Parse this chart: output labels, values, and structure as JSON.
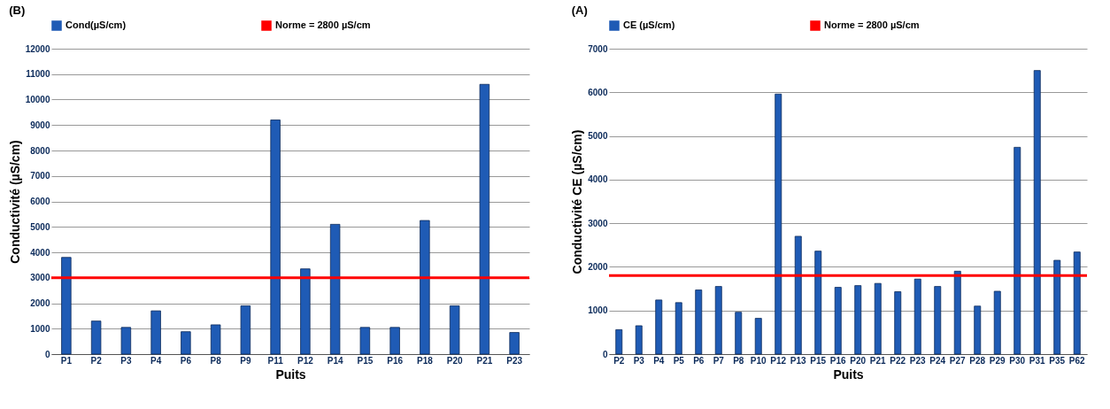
{
  "chart_data": [
    {
      "type": "bar",
      "annotations": [
        "(B)",
        "Norme = 2800 µS/cm"
      ],
      "xlabel": "Puits",
      "ylabel": "Conductivité (µS/cm)",
      "categories": [
        "P1",
        "P2",
        "P3",
        "P4",
        "P6",
        "P8",
        "P9",
        "P11",
        "P12",
        "P14",
        "P15",
        "P16",
        "P18",
        "P20",
        "P21",
        "P23"
      ],
      "series": [
        {
          "name": "Cond(µS/cm)",
          "color": "#1f5bb5",
          "values": [
            3800,
            1300,
            1050,
            1700,
            880,
            1150,
            1900,
            9200,
            3350,
            5100,
            1050,
            1050,
            5250,
            1900,
            10600,
            850
          ]
        }
      ],
      "ylim": [
        0,
        12000
      ],
      "yticks": [
        0,
        1000,
        2000,
        3000,
        4000,
        5000,
        6000,
        7000,
        8000,
        9000,
        10000,
        11000,
        12000
      ],
      "grid": "y",
      "legend": "top",
      "ref_lines": [
        {
          "axis": "y",
          "value": 3000,
          "color": "#ff0000"
        }
      ]
    },
    {
      "type": "bar",
      "annotations": [
        "(A)",
        "Norme = 2800 µS/cm"
      ],
      "xlabel": "Puits",
      "ylabel": "Conductivité CE (µS/cm)",
      "categories": [
        "P2",
        "P3",
        "P4",
        "P5",
        "P6",
        "P7",
        "P8",
        "P10",
        "P12",
        "P13",
        "P15",
        "P16",
        "P20",
        "P21",
        "P22",
        "P23",
        "P24",
        "P27",
        "P28",
        "P29",
        "P30",
        "P31",
        "P35",
        "P62"
      ],
      "series": [
        {
          "name": "CE (µS/cm)",
          "color": "#1f5bb5",
          "values": [
            560,
            650,
            1240,
            1180,
            1470,
            1550,
            960,
            820,
            5960,
            2700,
            2360,
            1530,
            1570,
            1620,
            1430,
            1720,
            1550,
            1900,
            1100,
            1440,
            4740,
            6500,
            2150,
            2340
          ]
        }
      ],
      "ylim": [
        0,
        7000
      ],
      "yticks": [
        0,
        1000,
        2000,
        3000,
        4000,
        5000,
        6000,
        7000
      ],
      "grid": "y",
      "legend": "top",
      "ref_lines": [
        {
          "axis": "y",
          "value": 1800,
          "color": "#ff0000"
        }
      ]
    }
  ]
}
